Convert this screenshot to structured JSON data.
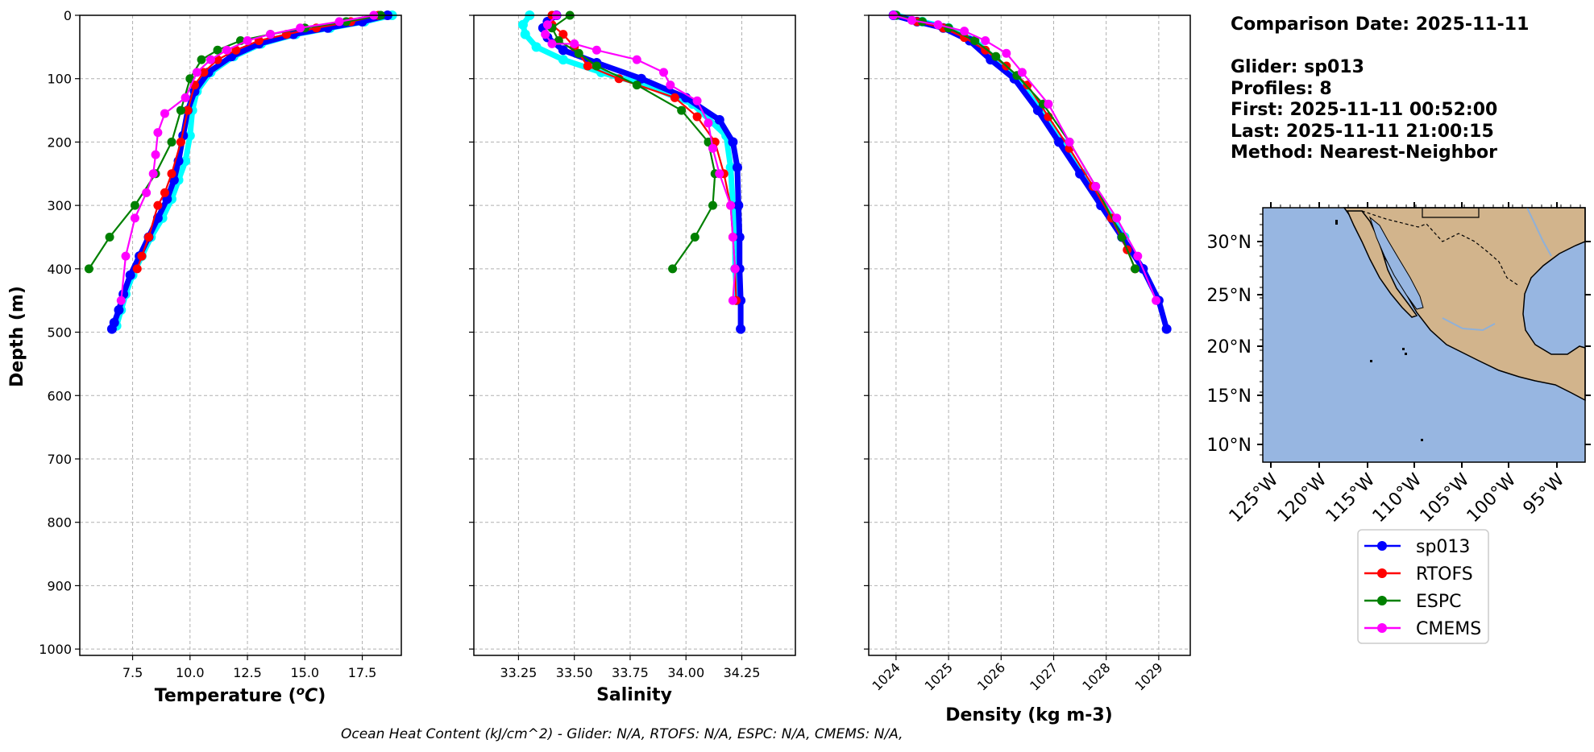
{
  "chart_data": [
    {
      "type": "line",
      "id": "temperature",
      "xlabel": "Temperature (",
      "xlabel_unit": "°C",
      "xlabel_close": ")",
      "ylabel": "Depth (m)",
      "xlim": [
        5.2,
        19.2
      ],
      "ylim": [
        1010,
        0
      ],
      "xticks": [
        "7.5",
        "10.0",
        "12.5",
        "15.0",
        "17.5"
      ],
      "yticks": [
        "0",
        "100",
        "200",
        "300",
        "400",
        "500",
        "600",
        "700",
        "800",
        "900",
        "1000"
      ],
      "grid": true,
      "series": [
        {
          "name": "sp013",
          "color": "#0000ff",
          "x": [
            18.6,
            17.5,
            16.0,
            14.5,
            13.0,
            11.8,
            10.8,
            10.2,
            9.9,
            9.7,
            9.5,
            9.3,
            9.0,
            8.6,
            8.2,
            7.8,
            7.4,
            7.1,
            6.9,
            6.7,
            6.6
          ],
          "y": [
            0,
            10,
            20,
            30,
            45,
            65,
            90,
            120,
            150,
            190,
            230,
            260,
            290,
            320,
            350,
            380,
            410,
            440,
            465,
            485,
            495
          ]
        },
        {
          "name": "cyan-profiles",
          "color": "#00ffff",
          "x": [
            18.8,
            17.6,
            16.1,
            14.6,
            13.1,
            11.9,
            10.9,
            10.3,
            10.1,
            10.0,
            9.8,
            9.5,
            9.2,
            8.8,
            8.3,
            7.9,
            7.5,
            7.2,
            7.0,
            6.8
          ],
          "y": [
            0,
            10,
            20,
            30,
            45,
            65,
            90,
            120,
            150,
            190,
            230,
            260,
            290,
            320,
            350,
            380,
            410,
            440,
            465,
            490
          ]
        },
        {
          "name": "RTOFS",
          "color": "#ff0000",
          "x": [
            18.2,
            17.0,
            15.5,
            14.2,
            13.0,
            12.0,
            11.2,
            10.6,
            10.2,
            9.9,
            9.6,
            9.2,
            8.9,
            8.6,
            8.2,
            7.9,
            7.7
          ],
          "y": [
            0,
            10,
            20,
            30,
            40,
            55,
            70,
            90,
            110,
            150,
            200,
            250,
            280,
            300,
            350,
            380,
            400
          ]
        },
        {
          "name": "ESPC",
          "color": "#008000",
          "x": [
            18.3,
            16.8,
            15.0,
            13.5,
            12.2,
            11.2,
            10.5,
            10.0,
            9.6,
            9.2,
            8.5,
            7.6,
            6.5,
            5.6
          ],
          "y": [
            0,
            10,
            20,
            30,
            40,
            55,
            70,
            100,
            150,
            200,
            250,
            300,
            350,
            400
          ]
        },
        {
          "name": "CMEMS",
          "color": "#ff00ff",
          "x": [
            18.0,
            16.5,
            14.8,
            13.5,
            12.5,
            11.6,
            10.9,
            10.3,
            9.8,
            8.9,
            8.6,
            8.5,
            8.4,
            8.1,
            7.6,
            7.2,
            7.0
          ],
          "y": [
            0,
            10,
            20,
            30,
            40,
            55,
            70,
            90,
            130,
            155,
            185,
            220,
            250,
            280,
            320,
            380,
            450
          ]
        }
      ]
    },
    {
      "type": "line",
      "id": "salinity",
      "xlabel": "Salinity",
      "xlim": [
        33.05,
        34.49
      ],
      "ylim": [
        1010,
        0
      ],
      "xticks": [
        "33.25",
        "33.50",
        "33.75",
        "34.00",
        "34.25"
      ],
      "grid": true,
      "series": [
        {
          "name": "sp013",
          "color": "#0000ff",
          "x": [
            33.42,
            33.38,
            33.36,
            33.38,
            33.45,
            33.6,
            33.8,
            34.0,
            34.15,
            34.21,
            34.23,
            34.235,
            34.24,
            34.24,
            34.245,
            34.245
          ],
          "y": [
            0,
            10,
            20,
            35,
            55,
            75,
            100,
            130,
            165,
            200,
            240,
            300,
            350,
            400,
            450,
            495
          ]
        },
        {
          "name": "cyan-profiles",
          "color": "#00ffff",
          "x": [
            33.3,
            33.27,
            33.28,
            33.33,
            33.45,
            33.62,
            33.82,
            34.03,
            34.18,
            34.2,
            34.21,
            34.22,
            34.22,
            34.23
          ],
          "y": [
            0,
            15,
            30,
            50,
            70,
            90,
            110,
            140,
            190,
            240,
            300,
            350,
            400,
            450
          ]
        },
        {
          "name": "RTOFS",
          "color": "#ff0000",
          "x": [
            33.4,
            33.4,
            33.45,
            33.5,
            33.56,
            33.7,
            33.95,
            34.05,
            34.13,
            34.17,
            34.2,
            34.21,
            34.22,
            34.225
          ],
          "y": [
            0,
            15,
            30,
            50,
            80,
            100,
            130,
            160,
            200,
            250,
            300,
            350,
            400,
            450
          ]
        },
        {
          "name": "ESPC",
          "color": "#008000",
          "x": [
            33.48,
            33.4,
            33.43,
            33.52,
            33.6,
            33.78,
            33.98,
            34.1,
            34.13,
            34.12,
            34.04,
            33.94
          ],
          "y": [
            0,
            20,
            40,
            60,
            80,
            110,
            150,
            200,
            250,
            300,
            350,
            400
          ]
        },
        {
          "name": "CMEMS",
          "color": "#ff00ff",
          "x": [
            33.42,
            33.38,
            33.37,
            33.4,
            33.5,
            33.6,
            33.78,
            33.9,
            33.93,
            34.05,
            34.1,
            34.12,
            34.15,
            34.2,
            34.21,
            34.22,
            34.21
          ],
          "y": [
            0,
            15,
            30,
            45,
            45,
            55,
            70,
            90,
            110,
            135,
            170,
            210,
            250,
            300,
            350,
            400,
            450
          ]
        }
      ]
    },
    {
      "type": "line",
      "id": "density",
      "xlabel": "Density (kg m-3)",
      "xlim": [
        1023.48,
        1029.6
      ],
      "ylim": [
        1010,
        0
      ],
      "xticks": [
        "1024",
        "1025",
        "1026",
        "1027",
        "1028",
        "1029"
      ],
      "grid": true,
      "series": [
        {
          "name": "sp013",
          "color": "#0000ff",
          "x": [
            1023.95,
            1024.4,
            1024.9,
            1025.4,
            1025.8,
            1026.25,
            1026.7,
            1027.1,
            1027.5,
            1027.9,
            1028.3,
            1028.7,
            1029.0,
            1029.15
          ],
          "y": [
            0,
            10,
            20,
            40,
            70,
            100,
            150,
            200,
            250,
            300,
            350,
            400,
            450,
            495
          ]
        },
        {
          "name": "cyan-profiles",
          "color": "#00ffff",
          "x": [
            1024.0,
            1024.5,
            1025.0,
            1025.5,
            1025.9,
            1026.3,
            1026.75,
            1027.15,
            1027.55,
            1027.95,
            1028.35
          ],
          "y": [
            0,
            10,
            20,
            40,
            70,
            100,
            150,
            200,
            250,
            300,
            350
          ]
        },
        {
          "name": "RTOFS",
          "color": "#ff0000",
          "x": [
            1024.0,
            1024.4,
            1024.9,
            1025.3,
            1025.7,
            1026.1,
            1026.5,
            1026.9,
            1027.3,
            1027.75,
            1028.1,
            1028.4,
            1028.55
          ],
          "y": [
            0,
            10,
            20,
            35,
            55,
            80,
            110,
            160,
            210,
            270,
            320,
            370,
            400
          ]
        },
        {
          "name": "ESPC",
          "color": "#008000",
          "x": [
            1024.0,
            1024.5,
            1025.0,
            1025.5,
            1025.9,
            1026.3,
            1026.8,
            1027.3,
            1027.8,
            1028.3,
            1028.55
          ],
          "y": [
            0,
            10,
            20,
            40,
            65,
            95,
            140,
            200,
            270,
            350,
            400
          ]
        },
        {
          "name": "CMEMS",
          "color": "#ff00ff",
          "x": [
            1023.95,
            1024.3,
            1024.8,
            1025.3,
            1025.7,
            1026.1,
            1026.4,
            1026.9,
            1027.3,
            1027.8,
            1028.2,
            1028.6,
            1028.95
          ],
          "y": [
            0,
            8,
            15,
            25,
            40,
            60,
            90,
            140,
            200,
            270,
            320,
            380,
            450
          ]
        }
      ]
    }
  ],
  "info": {
    "comparison_date": "Comparison Date: 2025-11-11",
    "glider": "Glider: sp013",
    "profiles": "Profiles: 8",
    "first": "First: 2025-11-11 00:52:00",
    "last": "Last: 2025-11-11 21:00:15",
    "method": "Method: Nearest-Neighbor"
  },
  "map": {
    "lat_ticks": [
      "30°N",
      "25°N",
      "20°N",
      "15°N",
      "10°N"
    ],
    "lon_ticks": [
      "125°W",
      "120°W",
      "115°W",
      "110°W",
      "105°W",
      "100°W",
      "95°W"
    ],
    "ocean_color": "#97b6e1",
    "land_color": "#d2b48c"
  },
  "legend": {
    "entries": [
      {
        "label": "sp013",
        "color": "#0000ff"
      },
      {
        "label": "RTOFS",
        "color": "#ff0000"
      },
      {
        "label": "ESPC",
        "color": "#008000"
      },
      {
        "label": "CMEMS",
        "color": "#ff00ff"
      }
    ],
    "placement": "below-map"
  },
  "footer": "Ocean Heat Content (kJ/cm^2) - Glider: N/A,  RTOFS: N/A,  ESPC: N/A,  CMEMS: N/A,"
}
